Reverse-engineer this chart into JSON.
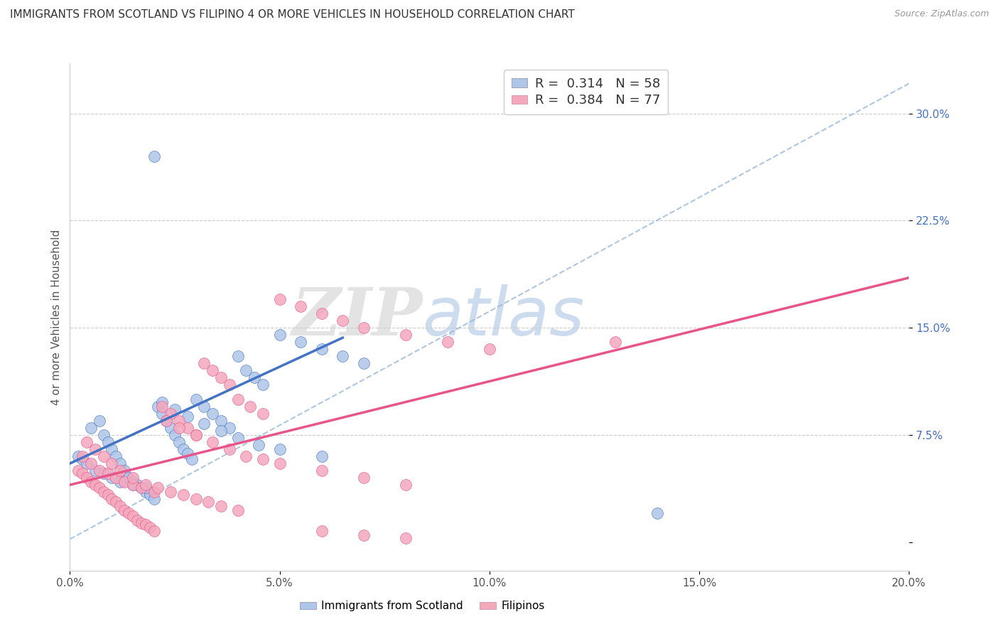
{
  "title": "IMMIGRANTS FROM SCOTLAND VS FILIPINO 4 OR MORE VEHICLES IN HOUSEHOLD CORRELATION CHART",
  "source": "Source: ZipAtlas.com",
  "ylabel": "4 or more Vehicles in Household",
  "xlim": [
    0.0,
    0.2
  ],
  "ylim": [
    -0.02,
    0.335
  ],
  "xticks": [
    0.0,
    0.05,
    0.1,
    0.15,
    0.2
  ],
  "xticklabels": [
    "0.0%",
    "5.0%",
    "10.0%",
    "15.0%",
    "20.0%"
  ],
  "yticks": [
    0.0,
    0.075,
    0.15,
    0.225,
    0.3
  ],
  "yticklabels": [
    "",
    "7.5%",
    "15.0%",
    "22.5%",
    "30.0%"
  ],
  "legend_R1": "0.314",
  "legend_N1": "58",
  "legend_R2": "0.384",
  "legend_N2": "77",
  "color_scotland": "#aec6e8",
  "color_filipino": "#f4a8bc",
  "color_line_scotland": "#4472c4",
  "color_line_filipino": "#e8558a",
  "color_dashed": "#9ab8d8",
  "watermark_zip": "ZIP",
  "watermark_atlas": "atlas",
  "scotland_x": [
    0.005,
    0.007,
    0.008,
    0.009,
    0.01,
    0.011,
    0.012,
    0.013,
    0.014,
    0.015,
    0.016,
    0.017,
    0.018,
    0.019,
    0.02,
    0.021,
    0.022,
    0.023,
    0.024,
    0.025,
    0.026,
    0.027,
    0.028,
    0.029,
    0.03,
    0.032,
    0.034,
    0.036,
    0.038,
    0.04,
    0.042,
    0.044,
    0.046,
    0.05,
    0.055,
    0.06,
    0.065,
    0.07,
    0.002,
    0.003,
    0.004,
    0.006,
    0.008,
    0.01,
    0.012,
    0.015,
    0.018,
    0.022,
    0.025,
    0.028,
    0.032,
    0.036,
    0.04,
    0.045,
    0.05,
    0.06,
    0.14,
    0.02
  ],
  "scotland_y": [
    0.08,
    0.085,
    0.075,
    0.07,
    0.065,
    0.06,
    0.055,
    0.05,
    0.045,
    0.042,
    0.04,
    0.038,
    0.035,
    0.033,
    0.03,
    0.095,
    0.09,
    0.085,
    0.08,
    0.075,
    0.07,
    0.065,
    0.062,
    0.058,
    0.1,
    0.095,
    0.09,
    0.085,
    0.08,
    0.13,
    0.12,
    0.115,
    0.11,
    0.145,
    0.14,
    0.135,
    0.13,
    0.125,
    0.06,
    0.058,
    0.055,
    0.05,
    0.048,
    0.045,
    0.042,
    0.04,
    0.038,
    0.098,
    0.093,
    0.088,
    0.083,
    0.078,
    0.073,
    0.068,
    0.065,
    0.06,
    0.02,
    0.27
  ],
  "filipino_x": [
    0.002,
    0.003,
    0.004,
    0.005,
    0.006,
    0.007,
    0.008,
    0.009,
    0.01,
    0.011,
    0.012,
    0.013,
    0.014,
    0.015,
    0.016,
    0.017,
    0.018,
    0.019,
    0.02,
    0.022,
    0.024,
    0.026,
    0.028,
    0.03,
    0.032,
    0.034,
    0.036,
    0.038,
    0.04,
    0.043,
    0.046,
    0.05,
    0.055,
    0.06,
    0.065,
    0.07,
    0.08,
    0.09,
    0.1,
    0.003,
    0.005,
    0.007,
    0.009,
    0.011,
    0.013,
    0.015,
    0.017,
    0.02,
    0.023,
    0.026,
    0.03,
    0.034,
    0.038,
    0.042,
    0.046,
    0.05,
    0.06,
    0.07,
    0.08,
    0.004,
    0.006,
    0.008,
    0.01,
    0.012,
    0.015,
    0.018,
    0.021,
    0.024,
    0.027,
    0.03,
    0.033,
    0.036,
    0.04,
    0.13,
    0.06,
    0.07,
    0.08
  ],
  "filipino_y": [
    0.05,
    0.048,
    0.045,
    0.042,
    0.04,
    0.038,
    0.035,
    0.033,
    0.03,
    0.028,
    0.025,
    0.022,
    0.02,
    0.018,
    0.015,
    0.013,
    0.012,
    0.01,
    0.008,
    0.095,
    0.09,
    0.085,
    0.08,
    0.075,
    0.125,
    0.12,
    0.115,
    0.11,
    0.1,
    0.095,
    0.09,
    0.17,
    0.165,
    0.16,
    0.155,
    0.15,
    0.145,
    0.14,
    0.135,
    0.06,
    0.055,
    0.05,
    0.048,
    0.045,
    0.042,
    0.04,
    0.038,
    0.035,
    0.085,
    0.08,
    0.075,
    0.07,
    0.065,
    0.06,
    0.058,
    0.055,
    0.05,
    0.045,
    0.04,
    0.07,
    0.065,
    0.06,
    0.055,
    0.05,
    0.045,
    0.04,
    0.038,
    0.035,
    0.033,
    0.03,
    0.028,
    0.025,
    0.022,
    0.14,
    0.008,
    0.005,
    0.003
  ]
}
